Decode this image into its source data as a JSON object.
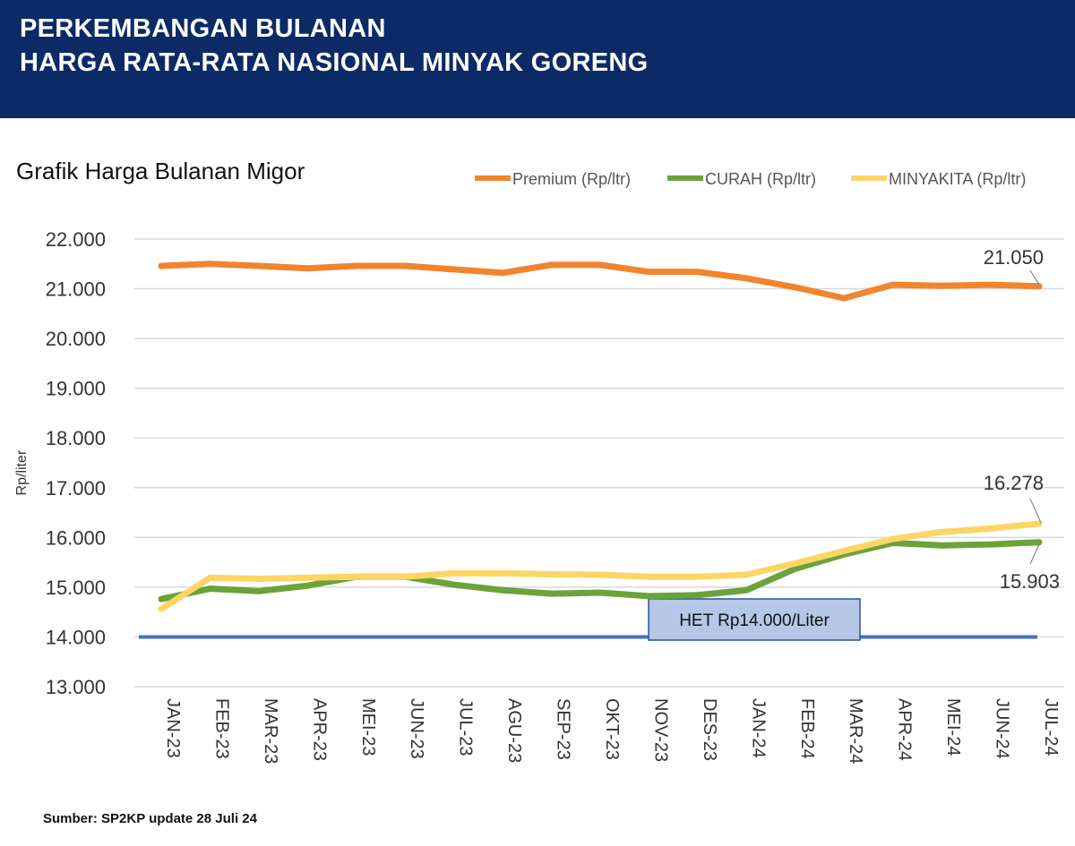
{
  "header": {
    "line1": "PERKEMBANGAN BULANAN",
    "line2": "HARGA RATA-RATA NASIONAL MINYAK GORENG"
  },
  "source": "Sumber: SP2KP update 28 Juli 24",
  "chart_data": {
    "type": "line",
    "title": "Grafik Harga Bulanan Migor",
    "ylabel": "Rp/liter",
    "xlabel": "",
    "ylim": [
      13000,
      22000
    ],
    "yticks": [
      "13.000",
      "14.000",
      "15.000",
      "16.000",
      "17.000",
      "18.000",
      "19.000",
      "20.000",
      "21.000",
      "22.000"
    ],
    "grid": true,
    "legend": "top-right",
    "categories": [
      "JAN-23",
      "FEB-23",
      "MAR-23",
      "APR-23",
      "MEI-23",
      "JUN-23",
      "JUL-23",
      "AGU-23",
      "SEP-23",
      "OKT-23",
      "NOV-23",
      "DES-23",
      "JAN-24",
      "FEB-24",
      "MAR-24",
      "APR-24",
      "MEI-24",
      "JUN-24",
      "JUL-24"
    ],
    "series": [
      {
        "name": "Premium (Rp/ltr)",
        "color": "#f0852d",
        "values": [
          21460,
          21500,
          21460,
          21410,
          21460,
          21460,
          21390,
          21320,
          21480,
          21480,
          21340,
          21340,
          21210,
          21030,
          20810,
          21080,
          21060,
          21080,
          21050
        ]
      },
      {
        "name": "CURAH (Rp/ltr)",
        "color": "#6aa33a",
        "values": [
          14760,
          14970,
          14920,
          15030,
          15210,
          15210,
          15050,
          14940,
          14870,
          14890,
          14820,
          14840,
          14940,
          15370,
          15660,
          15890,
          15840,
          15860,
          15903
        ]
      },
      {
        "name": "MINYAKITA (Rp/ltr)",
        "color": "#fdd565",
        "values": [
          14560,
          15190,
          15170,
          15190,
          15210,
          15210,
          15280,
          15280,
          15260,
          15250,
          15210,
          15210,
          15250,
          15480,
          15730,
          15970,
          16110,
          16180,
          16278
        ]
      }
    ],
    "annotations": {
      "premium_last": "21.050",
      "minyakita_last": "16.278",
      "curah_last": "15.903",
      "het_label": "HET Rp14.000/Liter"
    },
    "het": {
      "value": 14000,
      "color": "#4472c4"
    }
  }
}
